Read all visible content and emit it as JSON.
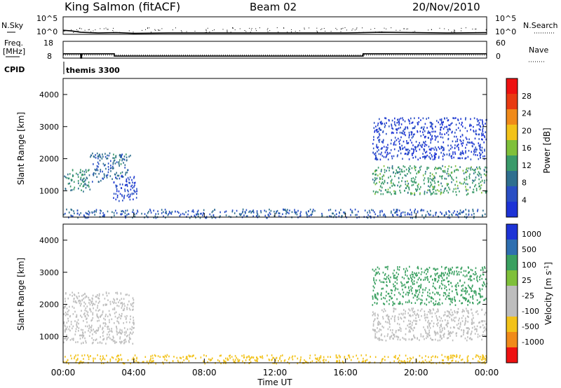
{
  "header": {
    "station": "King Salmon (fitACF)",
    "beam": "Beam 02",
    "date": "20/Nov/2010"
  },
  "noise_panel": {
    "left_label": "N.Sky",
    "right_label": "N.Search",
    "left_ticks": [
      "10^5",
      "10^0"
    ],
    "right_ticks": [
      "10^5",
      "10^0"
    ]
  },
  "freq_panel": {
    "left_label_line1": "Freq.",
    "left_label_line2": "[MHz]",
    "right_label": "Nave",
    "left_ticks": [
      "18",
      "8"
    ],
    "right_ticks": [
      "60",
      "0"
    ]
  },
  "cpid": {
    "label": "CPID",
    "value": "themis 3300"
  },
  "x_axis": {
    "title": "Time UT",
    "ticks": [
      "00:00",
      "04:00",
      "08:00",
      "12:00",
      "16:00",
      "20:00",
      "00:00"
    ]
  },
  "colors": {
    "frame": "#000000"
  },
  "chart_data": [
    {
      "type": "line",
      "name": "noise",
      "x_range_hours": [
        0,
        24
      ],
      "series": [
        {
          "name": "N.Sky",
          "x": [
            0,
            0.5,
            1,
            2,
            3,
            4,
            6,
            8,
            10,
            12,
            14,
            16,
            17,
            18,
            20,
            22,
            24
          ],
          "y_log10": [
            1.2,
            1.0,
            0.6,
            0.4,
            0.5,
            0.3,
            0.4,
            0.4,
            0.4,
            0.4,
            0.4,
            0.4,
            0.5,
            0.6,
            0.5,
            0.4,
            0.5
          ]
        }
      ]
    },
    {
      "type": "line",
      "name": "frequency",
      "x_range_hours": [
        0,
        24
      ],
      "series": [
        {
          "name": "Freq.",
          "x": [
            0,
            1.0,
            1.0,
            1.05,
            1.05,
            2.9,
            2.9,
            17.0,
            17.0,
            24
          ],
          "y": [
            10.6,
            10.6,
            8.0,
            8.0,
            10.6,
            10.6,
            9.2,
            9.2,
            10.6,
            10.6
          ]
        },
        {
          "name": "Nave",
          "x": [
            0,
            24
          ],
          "y": [
            11,
            11
          ]
        }
      ]
    },
    {
      "type": "heatmap",
      "name": "power",
      "x_range_hours": [
        0,
        24
      ],
      "ylabel": "Slant Range [km]",
      "ylim": [
        180,
        4500
      ],
      "yticks": [
        1000,
        2000,
        3000,
        4000
      ],
      "colorbar_label": "Power [dB]",
      "colorbar_ticks": [
        "4",
        "8",
        "12",
        "16",
        "20",
        "24",
        "28"
      ],
      "colorbar_range": [
        0,
        30
      ],
      "regions": [
        {
          "x": [
            0.0,
            1.5
          ],
          "y": [
            1000,
            1700
          ],
          "value": 12
        },
        {
          "x": [
            1.5,
            2.8
          ],
          "y": [
            1300,
            2200
          ],
          "value": 9
        },
        {
          "x": [
            2.8,
            3.8
          ],
          "y": [
            1400,
            2200
          ],
          "value": 10
        },
        {
          "x": [
            2.8,
            4.2
          ],
          "y": [
            700,
            1500
          ],
          "value": 5
        },
        {
          "x": [
            17.5,
            24.0
          ],
          "y": [
            900,
            1800
          ],
          "value": 14
        },
        {
          "x": [
            17.5,
            24.0
          ],
          "y": [
            2000,
            3300
          ],
          "value": 4
        },
        {
          "x": [
            0.0,
            24.0
          ],
          "y": [
            180,
            450
          ],
          "value": 8
        }
      ]
    },
    {
      "type": "heatmap",
      "name": "velocity",
      "x_range_hours": [
        0,
        24
      ],
      "ylabel": "Slant Range [km]",
      "ylim": [
        180,
        4500
      ],
      "yticks": [
        1000,
        2000,
        3000,
        4000
      ],
      "colorbar_label": "Velocity [m s-1]",
      "colorbar_ticks": [
        "1000",
        "500",
        "100",
        "25",
        "-25",
        "-100",
        "-500",
        "-1000"
      ],
      "regions": [
        {
          "x": [
            0.0,
            4.0
          ],
          "y": [
            800,
            2400
          ],
          "value": 0
        },
        {
          "x": [
            17.5,
            24.0
          ],
          "y": [
            900,
            1900
          ],
          "value": 0
        },
        {
          "x": [
            17.5,
            24.0
          ],
          "y": [
            2000,
            3200
          ],
          "value": 80
        },
        {
          "x": [
            0.0,
            24.0
          ],
          "y": [
            180,
            450
          ],
          "value": -60
        }
      ]
    }
  ]
}
